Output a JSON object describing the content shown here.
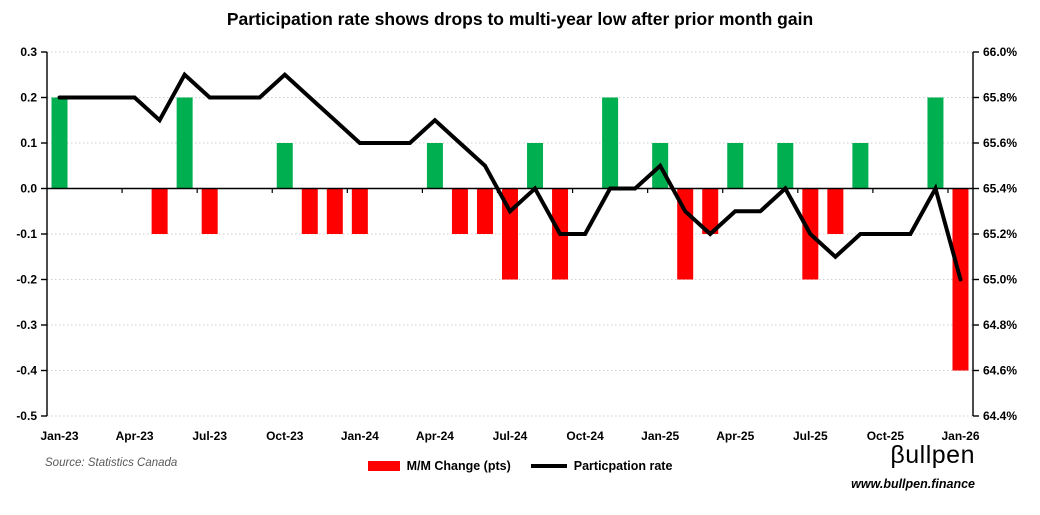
{
  "title": "Participation rate shows drops to multi-year low after prior month gain",
  "source_note": "Source: Statistics Canada",
  "legend": {
    "bar_label": "M/M Change (pts)",
    "line_label": "Particpation rate"
  },
  "branding": {
    "logo_text": "βullpen",
    "url": "www.bullpen.finance"
  },
  "colors": {
    "bar_positive": "#00B050",
    "bar_negative": "#FF0000",
    "line": "#000000",
    "grid": "#cfcfcf",
    "axis": "#000000"
  },
  "chart_data": {
    "type": "combo-bar-line",
    "title": "Participation rate shows drops to multi-year low after prior month gain",
    "categories": [
      "Jan-23",
      "Feb-23",
      "Mar-23",
      "Apr-23",
      "May-23",
      "Jun-23",
      "Jul-23",
      "Aug-23",
      "Sep-23",
      "Oct-23",
      "Nov-23",
      "Dec-23",
      "Jan-24",
      "Feb-24",
      "Mar-24",
      "Apr-24",
      "May-24",
      "Jun-24",
      "Jul-24",
      "Aug-24",
      "Sep-24",
      "Oct-24",
      "Nov-24",
      "Dec-24",
      "Jan-25",
      "Feb-25",
      "Mar-25",
      "Apr-25",
      "May-25",
      "Jun-25",
      "Jul-25",
      "Aug-25",
      "Sep-25",
      "Oct-25",
      "Nov-25",
      "Dec-25",
      "Jan-26"
    ],
    "x_axis_tick_labels": [
      "Jan-23",
      "Apr-23",
      "Jul-23",
      "Oct-23",
      "Jan-24",
      "Apr-24",
      "Jul-24",
      "Oct-24",
      "Jan-25",
      "Apr-25",
      "Jul-25",
      "Oct-25",
      "Jan-26"
    ],
    "series": [
      {
        "name": "M/M Change (pts)",
        "type": "bar",
        "yaxis": "left",
        "values": [
          0.2,
          0,
          0,
          0,
          -0.1,
          0.2,
          -0.1,
          0,
          0,
          0.1,
          -0.1,
          -0.1,
          -0.1,
          0,
          0,
          0.1,
          -0.1,
          -0.1,
          -0.2,
          0.1,
          -0.2,
          0,
          0.2,
          0,
          0.1,
          -0.2,
          -0.1,
          0.1,
          0,
          0.1,
          -0.2,
          -0.1,
          0.1,
          0,
          0,
          0.2,
          -0.4
        ]
      },
      {
        "name": "Particpation rate",
        "type": "line",
        "yaxis": "right",
        "values": [
          65.8,
          65.8,
          65.8,
          65.8,
          65.7,
          65.9,
          65.8,
          65.8,
          65.8,
          65.9,
          65.8,
          65.7,
          65.6,
          65.6,
          65.6,
          65.7,
          65.6,
          65.5,
          65.3,
          65.4,
          65.2,
          65.2,
          65.4,
          65.4,
          65.5,
          65.3,
          65.2,
          65.3,
          65.3,
          65.4,
          65.2,
          65.1,
          65.2,
          65.2,
          65.2,
          65.4,
          65.0
        ]
      }
    ],
    "left_axis": {
      "min": -0.5,
      "max": 0.3,
      "tick_step": 0.1,
      "tick_labels": [
        "0.3",
        "0.2",
        "0.1",
        "0.0",
        "-0.1",
        "-0.2",
        "-0.3",
        "-0.4",
        "-0.5"
      ]
    },
    "right_axis": {
      "min": 64.4,
      "max": 66.0,
      "tick_step": 0.2,
      "tick_labels": [
        "66.0%",
        "65.8%",
        "65.6%",
        "65.4%",
        "65.2%",
        "65.0%",
        "64.8%",
        "64.6%",
        "64.4%"
      ]
    },
    "grid": {
      "horizontal_dotted": true,
      "legend_position": "bottom-center"
    }
  }
}
